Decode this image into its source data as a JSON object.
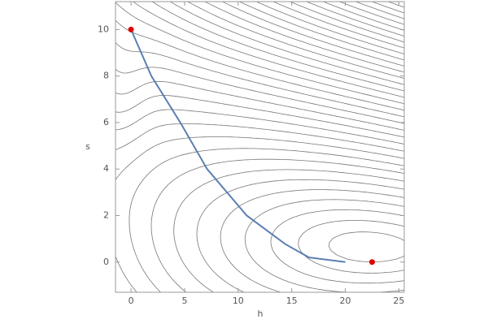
{
  "chart_data": {
    "type": "line",
    "x_label": "h",
    "y_label": "s",
    "xlim": [
      -1.45,
      25.5
    ],
    "ylim": [
      -1.3,
      11.2
    ],
    "xticks": [
      0,
      5,
      10,
      15,
      20,
      25
    ],
    "yticks": [
      0,
      2,
      4,
      6,
      8,
      10
    ],
    "grid": false,
    "series": [
      {
        "color": "#5b7fb0",
        "x": [
          0,
          1.9,
          4.6,
          7.1,
          10.8,
          14.4,
          16.6,
          20
        ],
        "values": [
          10,
          8,
          6,
          4,
          2,
          0.77,
          0.2,
          0
        ]
      }
    ],
    "points": {
      "color": "#e00000",
      "x": [
        0,
        22.5
      ],
      "values": [
        10,
        0
      ]
    }
  }
}
